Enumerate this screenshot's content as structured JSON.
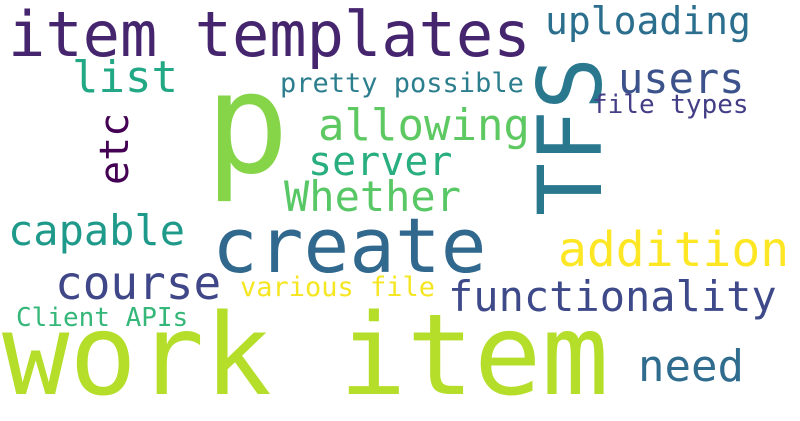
{
  "words": {
    "item_templates": {
      "text": "item templates",
      "color": "#46256f"
    },
    "uploading": {
      "text": "uploading",
      "color": "#2c6e8e"
    },
    "p": {
      "text": "p",
      "color": "#86d549"
    },
    "tfs": {
      "text": "TFS",
      "color": "#2a788e"
    },
    "list": {
      "text": "list",
      "color": "#22a884"
    },
    "users": {
      "text": "users",
      "color": "#3b528b"
    },
    "pretty_possible": {
      "text": "pretty possible",
      "color": "#2c7e8e"
    },
    "file_types": {
      "text": "file types",
      "color": "#433e85"
    },
    "etc": {
      "text": "etc",
      "color": "#440154"
    },
    "allowing": {
      "text": "allowing",
      "color": "#5ec962"
    },
    "server": {
      "text": "server",
      "color": "#29af7f"
    },
    "whether": {
      "text": "Whether",
      "color": "#58c765"
    },
    "capable": {
      "text": "capable",
      "color": "#1f9a8a"
    },
    "create": {
      "text": "create",
      "color": "#31688e"
    },
    "addition": {
      "text": "addition",
      "color": "#fde725"
    },
    "course": {
      "text": "course",
      "color": "#3f4788"
    },
    "various_file": {
      "text": "various file",
      "color": "#f5e621"
    },
    "functionality": {
      "text": "functionality",
      "color": "#3e4989"
    },
    "client_apis": {
      "text": "Client APIs",
      "color": "#35b779"
    },
    "work_item": {
      "text": "work item",
      "color": "#b5de2b"
    },
    "need": {
      "text": "need",
      "color": "#2f6c8e"
    }
  }
}
